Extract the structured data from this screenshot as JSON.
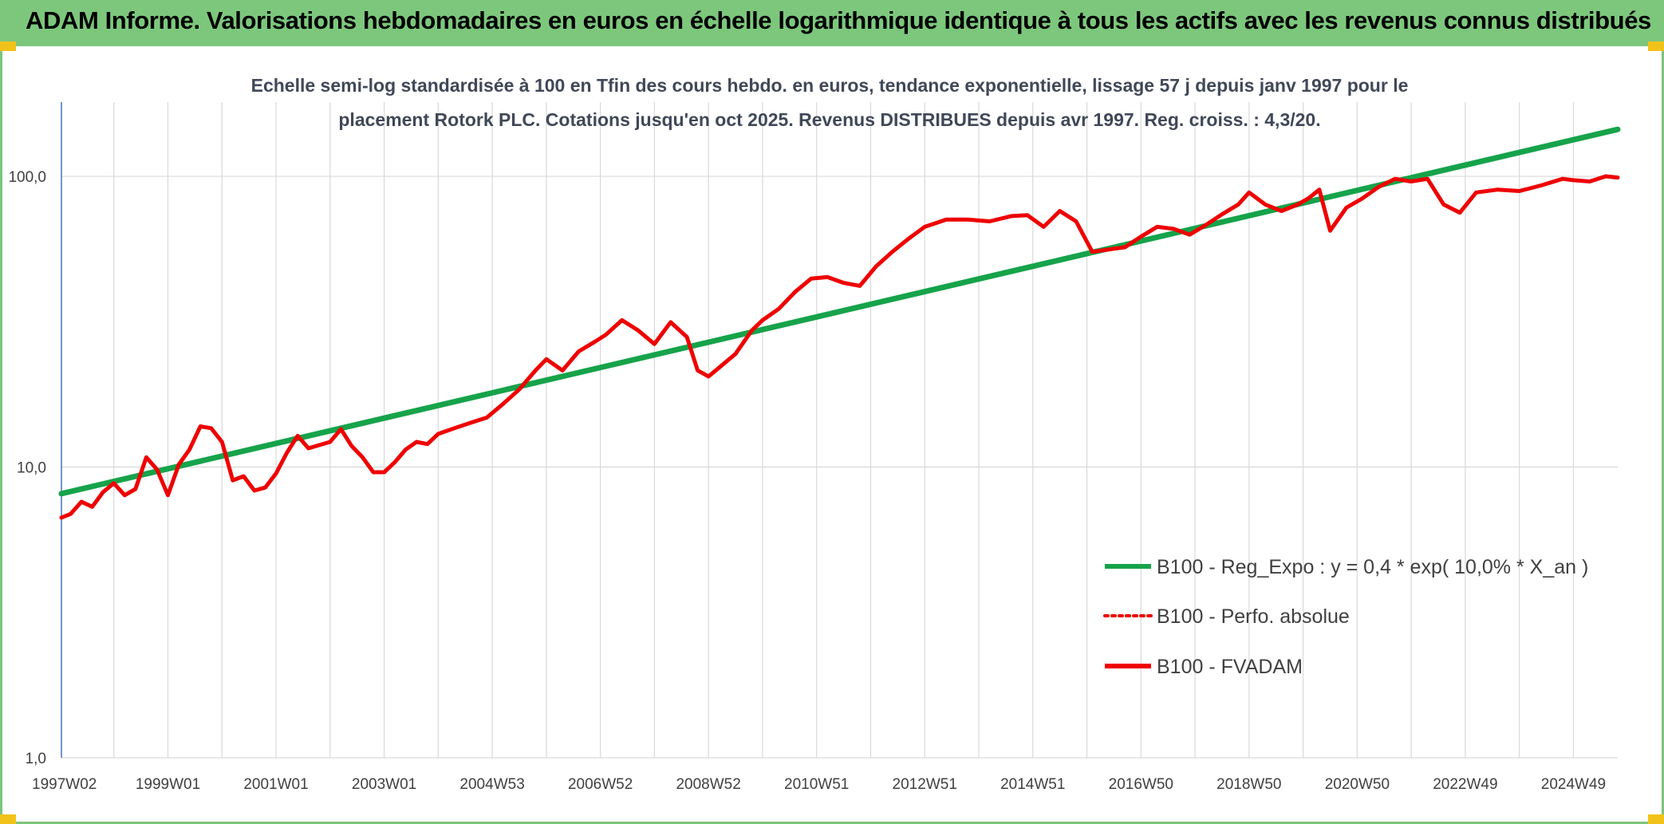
{
  "header": {
    "title": "ADAM Informe. Valorisations hebdomadaires en euros en échelle logarithmique identique à tous les actifs avec les revenus connus distribués"
  },
  "colors": {
    "header_bg": "#7dc77d",
    "regression": "#16a34a",
    "series": "#ee0000",
    "grid": "#d9d9d9",
    "text": "#404858",
    "accent_corner": "#f2c21a"
  },
  "chart_data": {
    "type": "line",
    "title_lines": [
      "Echelle semi-log standardisée à 100 en Tfin des cours hebdo. en euros, tendance exponentielle, lissage 57 j depuis janv 1997 pour le",
      "placement Rotork PLC. Cotations jusqu'en oct 2025. Revenus DISTRIBUES depuis avr 1997. Reg. croiss. : 4,3/20."
    ],
    "y_scale": "log",
    "ylim": [
      1,
      180
    ],
    "y_ticks": [
      {
        "value": 1,
        "label": "1,0"
      },
      {
        "value": 10,
        "label": "10,0"
      },
      {
        "value": 100,
        "label": "100,0"
      }
    ],
    "xlim": [
      1997.03,
      2025.82
    ],
    "x_ticks": [
      {
        "value": 1997.03,
        "label": "1997W02"
      },
      {
        "value": 1999.0,
        "label": "1999W01"
      },
      {
        "value": 2001.0,
        "label": "2001W01"
      },
      {
        "value": 2003.0,
        "label": "2003W01"
      },
      {
        "value": 2005.0,
        "label": "2004W53"
      },
      {
        "value": 2007.0,
        "label": "2006W52"
      },
      {
        "value": 2009.0,
        "label": "2008W52"
      },
      {
        "value": 2011.0,
        "label": "2010W51"
      },
      {
        "value": 2013.0,
        "label": "2012W51"
      },
      {
        "value": 2015.0,
        "label": "2014W51"
      },
      {
        "value": 2017.0,
        "label": "2016W50"
      },
      {
        "value": 2019.0,
        "label": "2018W50"
      },
      {
        "value": 2021.0,
        "label": "2020W50"
      },
      {
        "value": 2023.0,
        "label": "2022W49"
      },
      {
        "value": 2025.0,
        "label": "2024W49"
      }
    ],
    "x_minor_grid_step": 1,
    "grid": true,
    "legend_position": "bottom-right",
    "legend": [
      {
        "label": "B100 - Reg_Expo : y = 0,4 * exp( 10,0% *  X_an )",
        "style": "solid",
        "color": "#16a34a"
      },
      {
        "label": "B100 - Perfo. absolue",
        "style": "dotted",
        "color": "#ee0000"
      },
      {
        "label": "B100 - FVADAM",
        "style": "solid",
        "color": "#ee0000"
      }
    ],
    "series": [
      {
        "name": "B100 - Reg_Expo : y = 0,4 * exp( 10,0% *  X_an )",
        "color": "#16a34a",
        "x": [
          1997.03,
          2025.82
        ],
        "y": [
          8.1,
          145
        ]
      },
      {
        "name": "B100 - FVADAM",
        "color": "#ee0000",
        "x": [
          1997.03,
          1997.2,
          1997.4,
          1997.6,
          1997.8,
          1998.0,
          1998.2,
          1998.4,
          1998.6,
          1998.8,
          1999.0,
          1999.2,
          1999.4,
          1999.6,
          1999.8,
          2000.0,
          2000.2,
          2000.4,
          2000.6,
          2000.8,
          2001.0,
          2001.2,
          2001.4,
          2001.6,
          2001.8,
          2002.0,
          2002.2,
          2002.4,
          2002.6,
          2002.8,
          2003.0,
          2003.2,
          2003.4,
          2003.6,
          2003.8,
          2004.0,
          2004.3,
          2004.6,
          2004.9,
          2005.2,
          2005.5,
          2005.8,
          2006.0,
          2006.3,
          2006.6,
          2006.9,
          2007.1,
          2007.4,
          2007.7,
          2008.0,
          2008.3,
          2008.6,
          2008.8,
          2009.0,
          2009.2,
          2009.5,
          2009.8,
          2010.0,
          2010.3,
          2010.6,
          2010.9,
          2011.2,
          2011.5,
          2011.8,
          2012.1,
          2012.4,
          2012.7,
          2013.0,
          2013.4,
          2013.8,
          2014.2,
          2014.6,
          2014.9,
          2015.2,
          2015.5,
          2015.8,
          2016.1,
          2016.4,
          2016.7,
          2017.0,
          2017.3,
          2017.6,
          2017.9,
          2018.2,
          2018.5,
          2018.8,
          2019.0,
          2019.3,
          2019.6,
          2019.9,
          2020.1,
          2020.3,
          2020.5,
          2020.8,
          2021.1,
          2021.4,
          2021.7,
          2022.0,
          2022.3,
          2022.6,
          2022.9,
          2023.2,
          2023.6,
          2024.0,
          2024.4,
          2024.8,
          2025.0,
          2025.3,
          2025.6,
          2025.82
        ],
        "y": [
          6.7,
          6.9,
          7.6,
          7.3,
          8.2,
          8.8,
          8.0,
          8.4,
          10.8,
          9.8,
          8.0,
          10.2,
          11.5,
          13.8,
          13.6,
          12.2,
          9.0,
          9.3,
          8.3,
          8.5,
          9.5,
          11.2,
          12.8,
          11.6,
          11.9,
          12.2,
          13.5,
          11.8,
          10.8,
          9.6,
          9.6,
          10.4,
          11.5,
          12.2,
          12.0,
          13.0,
          13.6,
          14.2,
          14.8,
          16.5,
          18.5,
          21.5,
          23.5,
          21.5,
          25.0,
          27.0,
          28.5,
          32.0,
          29.5,
          26.5,
          31.5,
          28.0,
          21.5,
          20.5,
          22.0,
          24.5,
          29.5,
          32.0,
          35.0,
          40.0,
          44.5,
          45.0,
          43.0,
          42.0,
          49.0,
          55.0,
          61.0,
          67.0,
          71.0,
          71.0,
          70.0,
          73.0,
          73.5,
          67.0,
          76.0,
          70.0,
          55.0,
          56.0,
          57.0,
          62.0,
          67.0,
          66.0,
          63.0,
          68.0,
          74.0,
          80.0,
          88.0,
          80.0,
          76.0,
          80.0,
          84.0,
          90.0,
          65.0,
          78.0,
          84.0,
          92.0,
          98.0,
          96.0,
          98.0,
          80.0,
          75.0,
          88.0,
          90.0,
          89.0,
          93.0,
          98.0,
          97.0,
          96.0,
          100.0,
          99.0
        ]
      }
    ]
  }
}
